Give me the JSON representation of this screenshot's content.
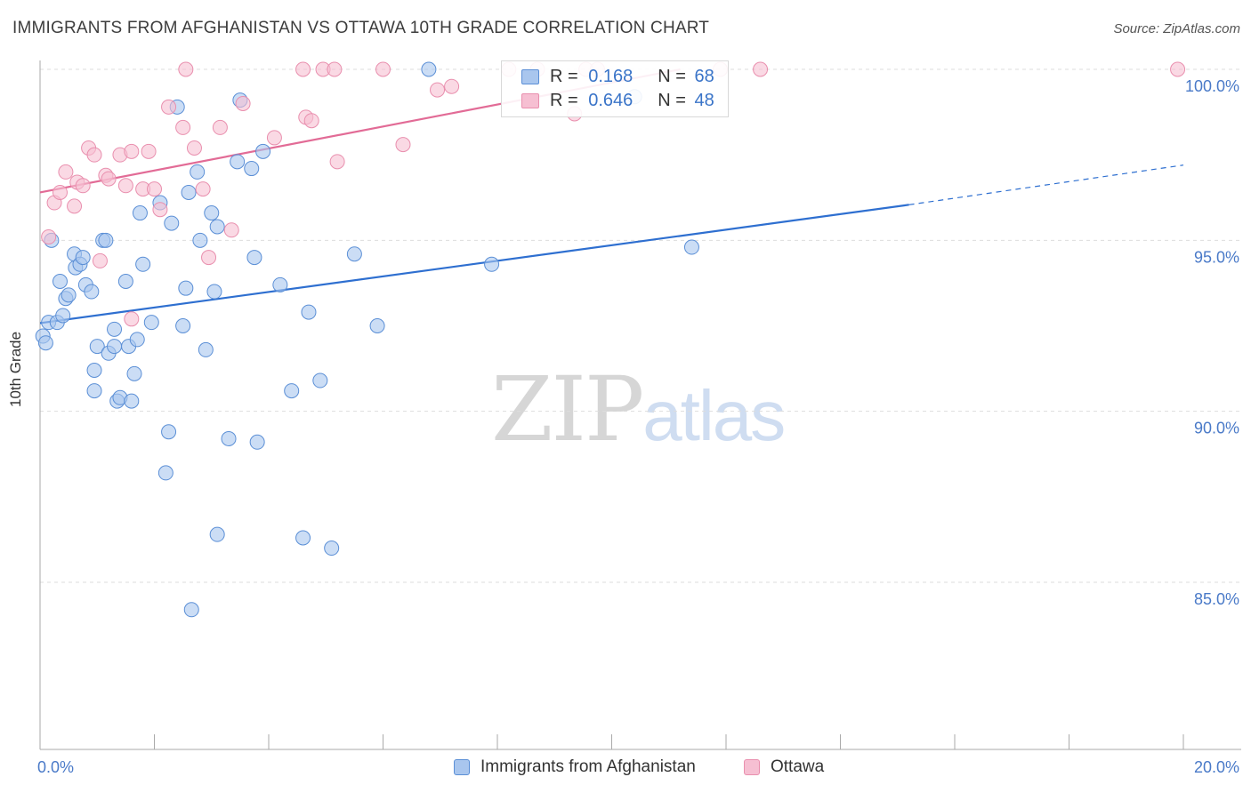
{
  "title": "IMMIGRANTS FROM AFGHANISTAN VS OTTAWA 10TH GRADE CORRELATION CHART",
  "source": "Source: ZipAtlas.com",
  "watermark": {
    "zip": "ZIP",
    "atlas": "atlas"
  },
  "colors": {
    "blue_fill": "#a9c6ee",
    "blue_stroke": "#5b8fd6",
    "blue_line": "#2e6fd0",
    "pink_fill": "#f6bfd2",
    "pink_stroke": "#e98fae",
    "pink_line": "#e26b96",
    "grid": "#dddddd",
    "axis_text": "#4a7ac8"
  },
  "stats": {
    "blue": {
      "r_label": "R = ",
      "r_value": "0.168",
      "n_label": "N = ",
      "n_value": "68"
    },
    "pink": {
      "r_label": "R = ",
      "r_value": "0.646",
      "n_label": "N = ",
      "n_value": "48"
    }
  },
  "legend": {
    "blue": "Immigrants from Afghanistan",
    "pink": "Ottawa"
  },
  "chart_data": {
    "type": "scatter",
    "title": "IMMIGRANTS FROM AFGHANISTAN VS OTTAWA 10TH GRADE CORRELATION CHART",
    "xlabel": "",
    "ylabel": "10th Grade",
    "xlim": [
      0,
      20
    ],
    "ylim": [
      80.5,
      100.6
    ],
    "x_tick_labels": [
      "0.0%",
      "20.0%"
    ],
    "y_ticks": [
      85,
      90,
      95,
      100
    ],
    "y_tick_labels": [
      "85.0%",
      "90.0%",
      "95.0%",
      "100.0%"
    ],
    "grid": true,
    "series": [
      {
        "name": "Immigrants from Afghanistan",
        "color": "blue",
        "trend": {
          "x0": 0,
          "y0": 92.58,
          "x1": 15.2,
          "y1": 96.04,
          "dash_to_x": 20,
          "dash_to_y": 97.2
        },
        "points": [
          [
            0.05,
            92.2
          ],
          [
            0.1,
            92.0
          ],
          [
            0.15,
            92.6
          ],
          [
            0.2,
            95.0
          ],
          [
            0.3,
            92.6
          ],
          [
            0.35,
            93.8
          ],
          [
            0.4,
            92.8
          ],
          [
            0.45,
            93.3
          ],
          [
            0.5,
            93.4
          ],
          [
            0.6,
            94.6
          ],
          [
            0.62,
            94.2
          ],
          [
            0.7,
            94.3
          ],
          [
            0.75,
            94.5
          ],
          [
            0.8,
            93.7
          ],
          [
            0.9,
            93.5
          ],
          [
            0.95,
            91.2
          ],
          [
            0.95,
            90.6
          ],
          [
            1.0,
            91.9
          ],
          [
            1.1,
            95.0
          ],
          [
            1.15,
            95.0
          ],
          [
            1.2,
            91.7
          ],
          [
            1.3,
            91.9
          ],
          [
            1.3,
            92.4
          ],
          [
            1.35,
            90.3
          ],
          [
            1.4,
            90.4
          ],
          [
            1.5,
            93.8
          ],
          [
            1.55,
            91.9
          ],
          [
            1.6,
            90.3
          ],
          [
            1.65,
            91.1
          ],
          [
            1.7,
            92.1
          ],
          [
            1.75,
            95.8
          ],
          [
            1.8,
            94.3
          ],
          [
            1.95,
            92.6
          ],
          [
            2.1,
            96.1
          ],
          [
            2.2,
            88.2
          ],
          [
            2.25,
            89.4
          ],
          [
            2.3,
            95.5
          ],
          [
            2.4,
            98.9
          ],
          [
            2.5,
            92.5
          ],
          [
            2.55,
            93.6
          ],
          [
            2.6,
            96.4
          ],
          [
            2.65,
            84.2
          ],
          [
            2.75,
            97.0
          ],
          [
            2.8,
            95.0
          ],
          [
            2.9,
            91.8
          ],
          [
            3.0,
            95.8
          ],
          [
            3.05,
            93.5
          ],
          [
            3.1,
            95.4
          ],
          [
            3.1,
            86.4
          ],
          [
            3.3,
            89.2
          ],
          [
            3.45,
            97.3
          ],
          [
            3.5,
            99.1
          ],
          [
            3.7,
            97.1
          ],
          [
            3.75,
            94.5
          ],
          [
            3.8,
            89.1
          ],
          [
            3.9,
            97.6
          ],
          [
            4.2,
            93.7
          ],
          [
            4.4,
            90.6
          ],
          [
            4.6,
            86.3
          ],
          [
            4.7,
            92.9
          ],
          [
            4.9,
            90.9
          ],
          [
            5.1,
            86.0
          ],
          [
            5.5,
            94.6
          ],
          [
            5.9,
            92.5
          ],
          [
            6.8,
            100.0
          ],
          [
            7.9,
            94.3
          ],
          [
            10.4,
            99.2
          ],
          [
            11.4,
            94.8
          ]
        ]
      },
      {
        "name": "Ottawa",
        "color": "pink",
        "trend": {
          "x0": 0,
          "y0": 96.4,
          "x1": 11.2,
          "y1": 100.0
        },
        "points": [
          [
            0.15,
            95.1
          ],
          [
            0.25,
            96.1
          ],
          [
            0.35,
            96.4
          ],
          [
            0.45,
            97.0
          ],
          [
            0.6,
            96.0
          ],
          [
            0.65,
            96.7
          ],
          [
            0.75,
            96.6
          ],
          [
            0.85,
            97.7
          ],
          [
            0.95,
            97.5
          ],
          [
            1.05,
            94.4
          ],
          [
            1.15,
            96.9
          ],
          [
            1.2,
            96.8
          ],
          [
            1.4,
            97.5
          ],
          [
            1.5,
            96.6
          ],
          [
            1.6,
            97.6
          ],
          [
            1.6,
            92.7
          ],
          [
            1.8,
            96.5
          ],
          [
            1.9,
            97.6
          ],
          [
            2.0,
            96.5
          ],
          [
            2.1,
            95.9
          ],
          [
            2.25,
            98.9
          ],
          [
            2.5,
            98.3
          ],
          [
            2.55,
            100.0
          ],
          [
            2.7,
            97.7
          ],
          [
            2.85,
            96.5
          ],
          [
            2.95,
            94.5
          ],
          [
            3.15,
            98.3
          ],
          [
            3.35,
            95.3
          ],
          [
            3.55,
            99.0
          ],
          [
            4.1,
            98.0
          ],
          [
            4.6,
            100.0
          ],
          [
            4.65,
            98.6
          ],
          [
            4.75,
            98.5
          ],
          [
            4.95,
            100.0
          ],
          [
            5.15,
            100.0
          ],
          [
            5.2,
            97.3
          ],
          [
            6.0,
            100.0
          ],
          [
            6.35,
            97.8
          ],
          [
            6.95,
            99.4
          ],
          [
            7.2,
            99.5
          ],
          [
            8.2,
            100.0
          ],
          [
            8.7,
            100.0
          ],
          [
            9.35,
            98.7
          ],
          [
            9.55,
            100.0
          ],
          [
            9.75,
            100.0
          ],
          [
            11.9,
            100.0
          ],
          [
            12.6,
            100.0
          ],
          [
            19.9,
            100.0
          ]
        ]
      }
    ]
  }
}
